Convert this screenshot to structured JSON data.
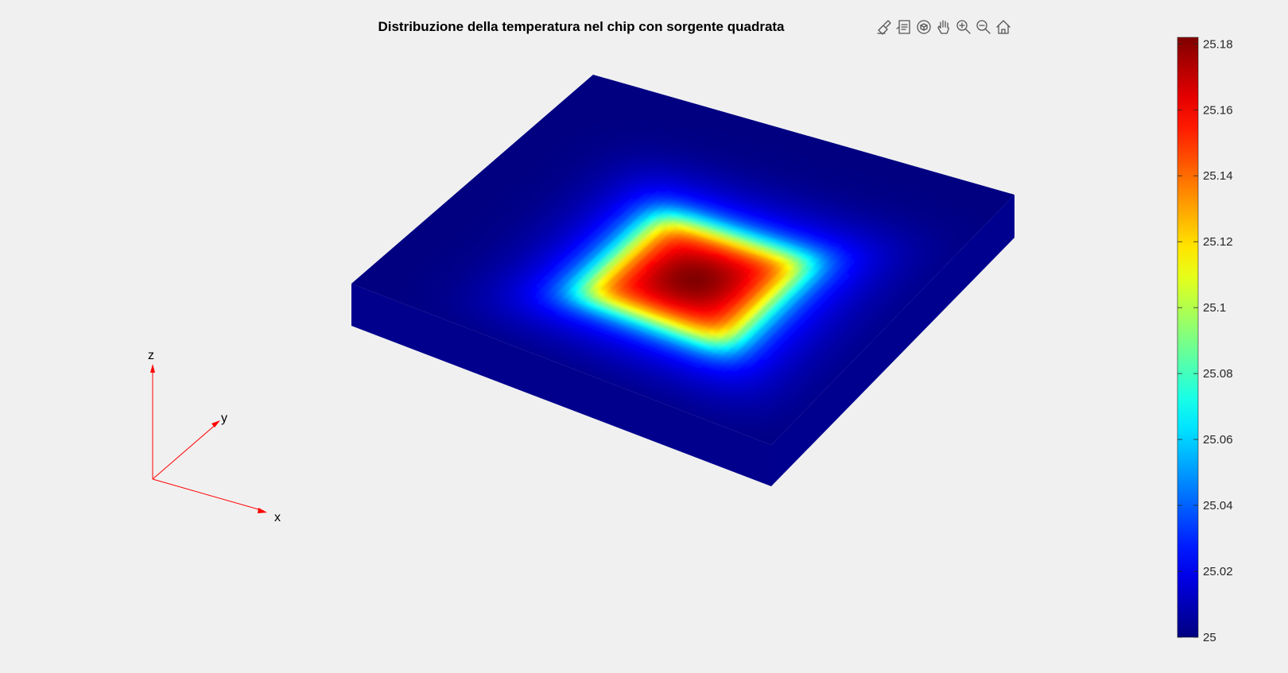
{
  "chart_data": {
    "type": "surface3d",
    "title": "Distribuzione della temperatura nel chip con sorgente quadrata",
    "colormap": "jet",
    "colorbar": {
      "location": "right",
      "ticks": [
        25,
        25.02,
        25.04,
        25.06,
        25.08,
        25.1,
        25.12,
        25.14,
        25.16,
        25.18
      ],
      "clim": [
        25,
        25.182
      ]
    },
    "data": {
      "ambient_temperature": 25,
      "peak_temperature": 25.182,
      "source_shape": "square",
      "source_center": [
        0.58,
        0.42
      ],
      "source_half_width": 0.18
    },
    "axes_triad": {
      "labels": [
        "x",
        "y",
        "z"
      ],
      "color": "#ff0000"
    }
  },
  "toolbar": [
    {
      "icon": "brush-icon"
    },
    {
      "icon": "datatip-icon"
    },
    {
      "icon": "rotate3d-icon"
    },
    {
      "icon": "pan-hand-icon"
    },
    {
      "icon": "zoom-in-icon"
    },
    {
      "icon": "zoom-out-icon"
    },
    {
      "icon": "home-icon"
    }
  ]
}
